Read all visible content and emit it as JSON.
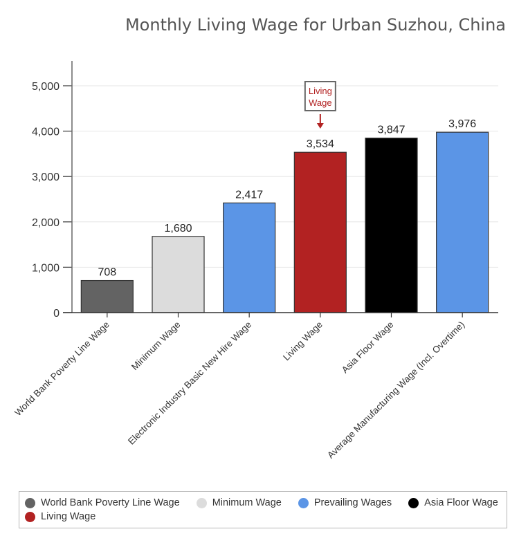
{
  "chart_data": {
    "type": "bar",
    "title": "Monthly Living Wage for Urban Suzhou, China",
    "xlabel": "",
    "ylabel": "",
    "ylim": [
      0,
      5500
    ],
    "yticks": [
      0,
      1000,
      2000,
      3000,
      4000,
      5000
    ],
    "ytick_labels": [
      "0",
      "1,000",
      "2,000",
      "3,000",
      "4,000",
      "5,000"
    ],
    "grid": true,
    "categories": [
      "World Bank Poverty Line Wage",
      "Minimum Wage",
      "Electronic Industry Basic New Hire Wage",
      "Living Wage",
      "Asia Floor Wage",
      "Average Manufacturing Wage (Incl. Overtime)"
    ],
    "values": [
      708,
      1680,
      2417,
      3534,
      3847,
      3976
    ],
    "value_labels": [
      "708",
      "1,680",
      "2,417",
      "3,534",
      "3,847",
      "3,976"
    ],
    "bar_groups": [
      "World Bank Poverty Line Wage",
      "Minimum Wage",
      "Prevailing Wages",
      "Living Wage",
      "Asia Floor Wage",
      "Prevailing Wages"
    ],
    "annotation": {
      "category": "Living Wage",
      "lines": [
        "Living",
        "Wage"
      ],
      "color": "#b22222"
    },
    "legend": {
      "placement": "bottom",
      "items": [
        {
          "label": "World Bank Poverty Line Wage",
          "color": "#636363"
        },
        {
          "label": "Minimum Wage",
          "color": "#dcdcdc"
        },
        {
          "label": "Prevailing Wages",
          "color": "#5b95e6"
        },
        {
          "label": "Asia Floor Wage",
          "color": "#000000"
        },
        {
          "label": "Living Wage",
          "color": "#b22222"
        }
      ]
    }
  }
}
